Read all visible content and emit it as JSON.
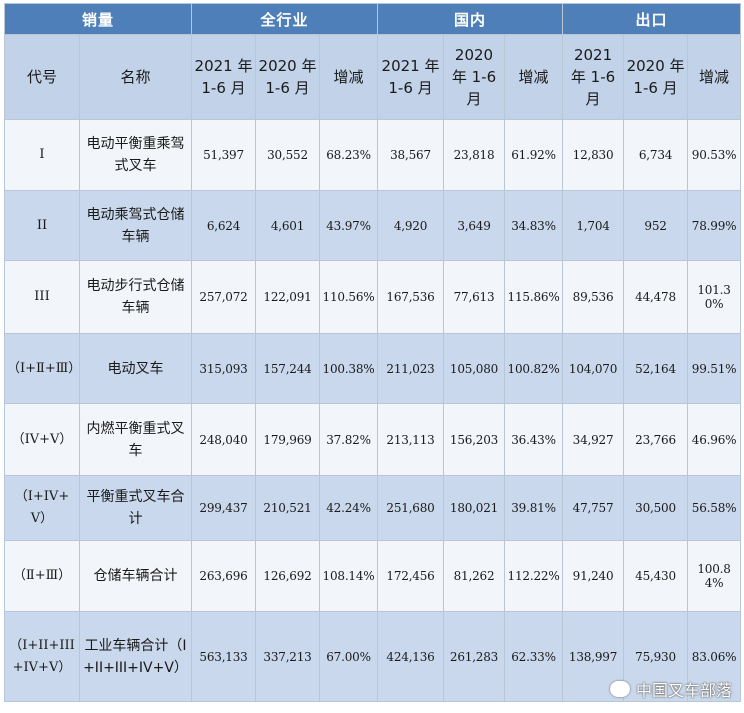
{
  "header": {
    "sales": "销量",
    "groups": [
      "全行业",
      "国内",
      "出口"
    ],
    "code": "代号",
    "name": "名称",
    "sub": [
      "2021 年 1-6 月",
      "2020 年 1-6 月",
      "增减",
      "2021 年 1-6 月",
      "2020 年 1-6 月",
      "增减",
      "2021 年 1-6 月",
      "2020 年 1-6 月",
      "增减"
    ]
  },
  "rows": [
    {
      "code": "I",
      "name": "电动平衡重乘驾式叉车",
      "vals": [
        "51,397",
        "30,552",
        "68.23%",
        "38,567",
        "23,818",
        "61.92%",
        "12,830",
        "6,734",
        "90.53%"
      ]
    },
    {
      "code": "II",
      "name": "电动乘驾式仓储车辆",
      "vals": [
        "6,624",
        "4,601",
        "43.97%",
        "4,920",
        "3,649",
        "34.83%",
        "1,704",
        "952",
        "78.99%"
      ]
    },
    {
      "code": "III",
      "name": "电动步行式仓储车辆",
      "vals": [
        "257,072",
        "122,091",
        "110.56%",
        "167,536",
        "77,613",
        "115.86%",
        "89,536",
        "44,478",
        "101.30%"
      ]
    },
    {
      "code": "（Ⅰ+Ⅱ+Ⅲ）",
      "name": "电动叉车",
      "vals": [
        "315,093",
        "157,244",
        "100.38%",
        "211,023",
        "105,080",
        "100.82%",
        "104,070",
        "52,164",
        "99.51%"
      ]
    },
    {
      "code": "（IV+V）",
      "name": "内燃平衡重式叉车",
      "vals": [
        "248,040",
        "179,969",
        "37.82%",
        "213,113",
        "156,203",
        "36.43%",
        "34,927",
        "23,766",
        "46.96%"
      ]
    },
    {
      "code": "（I+IV+V）",
      "name": "平衡重式叉车合计",
      "vals": [
        "299,437",
        "210,521",
        "42.24%",
        "251,680",
        "180,021",
        "39.81%",
        "47,757",
        "30,500",
        "56.58%"
      ]
    },
    {
      "code": "（Ⅱ+Ⅲ）",
      "name": "仓储车辆合计",
      "vals": [
        "263,696",
        "126,692",
        "108.14%",
        "172,456",
        "81,262",
        "112.22%",
        "91,240",
        "45,430",
        "100.84%"
      ]
    },
    {
      "code": "（I+II+III+IV+V）",
      "name": "工业车辆合计（I+II+III+IV+V）",
      "vals": [
        "563,133",
        "337,213",
        "67.00%",
        "424,136",
        "261,283",
        "62.33%",
        "138,997",
        "75,930",
        "83.06%"
      ]
    }
  ],
  "watermark": "中国叉车部落"
}
